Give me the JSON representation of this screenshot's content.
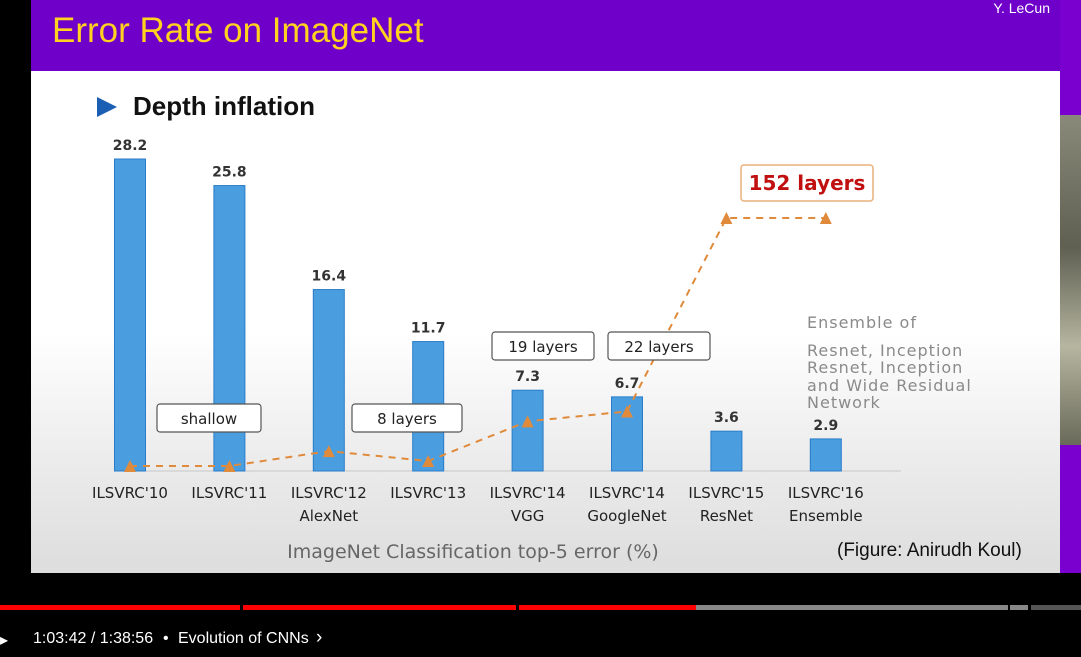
{
  "slide": {
    "title": "Error Rate on ImageNet",
    "author": "Y. LeCun",
    "bullet": "Depth inflation",
    "caption": "(Figure: Anirudh Koul)"
  },
  "chart_data": {
    "type": "bar",
    "categories": [
      "ILSVRC'10",
      "ILSVRC'11",
      "ILSVRC'12\nAlexNet",
      "ILSVRC'13",
      "ILSVRC'14\nVGG",
      "ILSVRC'14\nGoogleNet",
      "ILSVRC'15\nResNet",
      "ILSVRC'16\nEnsemble"
    ],
    "category_lines": [
      [
        "ILSVRC'10"
      ],
      [
        "ILSVRC'11"
      ],
      [
        "ILSVRC'12",
        "AlexNet"
      ],
      [
        "ILSVRC'13"
      ],
      [
        "ILSVRC'14",
        "VGG"
      ],
      [
        "ILSVRC'14",
        "GoogleNet"
      ],
      [
        "ILSVRC'15",
        "ResNet"
      ],
      [
        "ILSVRC'16",
        "Ensemble"
      ]
    ],
    "values": [
      28.2,
      25.8,
      16.4,
      11.7,
      7.3,
      6.7,
      3.6,
      2.9
    ],
    "value_labels": [
      "28.2",
      "25.8",
      "16.4",
      "11.7",
      "7.3",
      "6.7",
      "3.6",
      "2.9"
    ],
    "xlabel": "ImageNet Classification top-5 error (%)",
    "ylabel": "",
    "ylim": [
      0,
      28.2
    ],
    "depth_markers_relative": [
      0,
      0,
      0.06,
      0.02,
      0.18,
      0.22,
      1,
      1
    ],
    "depth_labels": [
      "shallow",
      "8 layers",
      "19 layers",
      "22 layers",
      "152 layers"
    ],
    "note_lines": [
      "Ensemble of",
      "",
      "Resnet, Inception",
      "Resnet, Inception",
      "and Wide Residual",
      "Network"
    ],
    "colors": {
      "bar": "#4a9ee0",
      "bar_edge": "#2a7cc8",
      "trend": "#e08a3c",
      "highlight": "#c01010"
    }
  },
  "player": {
    "time": "1:03:42 / 1:38:56",
    "separator": "•",
    "chapter": "Evolution of CNNs",
    "chapter_icon": "chevron-right-icon",
    "progress_fraction": 0.644,
    "colors": {
      "played": "#ff0000",
      "buffered": "#888888",
      "track": "#555555"
    }
  }
}
